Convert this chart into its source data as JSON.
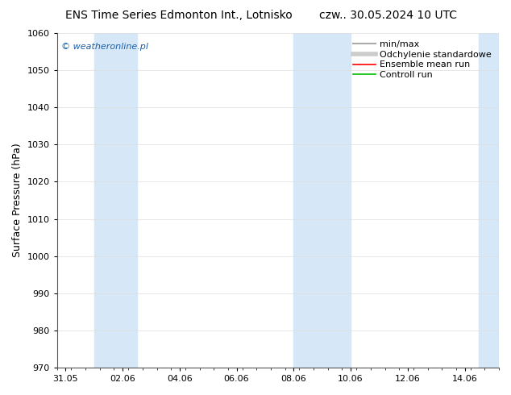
{
  "title_left": "ENS Time Series Edmonton Int., Lotnisko",
  "title_right": "czw.. 30.05.2024 10 UTC",
  "ylabel": "Surface Pressure (hPa)",
  "ylim": [
    970,
    1060
  ],
  "yticks": [
    970,
    980,
    990,
    1000,
    1010,
    1020,
    1030,
    1040,
    1050,
    1060
  ],
  "xtick_labels": [
    "31.05",
    "02.06",
    "04.06",
    "06.06",
    "08.06",
    "10.06",
    "12.06",
    "14.06"
  ],
  "xtick_positions": [
    0,
    2,
    4,
    6,
    8,
    10,
    12,
    14
  ],
  "blue_bands": [
    {
      "xstart": 1.0,
      "xend": 2.5
    },
    {
      "xstart": 8.0,
      "xend": 10.0
    },
    {
      "xstart": 14.5,
      "xend": 15.5
    }
  ],
  "band_color": "#d6e8f7",
  "background_color": "#ffffff",
  "plot_bg_color": "#ffffff",
  "watermark": "© weatheronline.pl",
  "watermark_color": "#1a5fa8",
  "legend_entries": [
    {
      "label": "min/max",
      "color": "#aaaaaa",
      "lw": 1.5,
      "style": "solid"
    },
    {
      "label": "Odchylenie standardowe",
      "color": "#cccccc",
      "lw": 4,
      "style": "solid"
    },
    {
      "label": "Ensemble mean run",
      "color": "#ff0000",
      "lw": 1.2,
      "style": "solid"
    },
    {
      "label": "Controll run",
      "color": "#00bb00",
      "lw": 1.2,
      "style": "solid"
    }
  ],
  "title_fontsize": 10,
  "ylabel_fontsize": 9,
  "tick_fontsize": 8,
  "legend_fontsize": 8,
  "xmin": -0.3,
  "xmax": 15.2
}
